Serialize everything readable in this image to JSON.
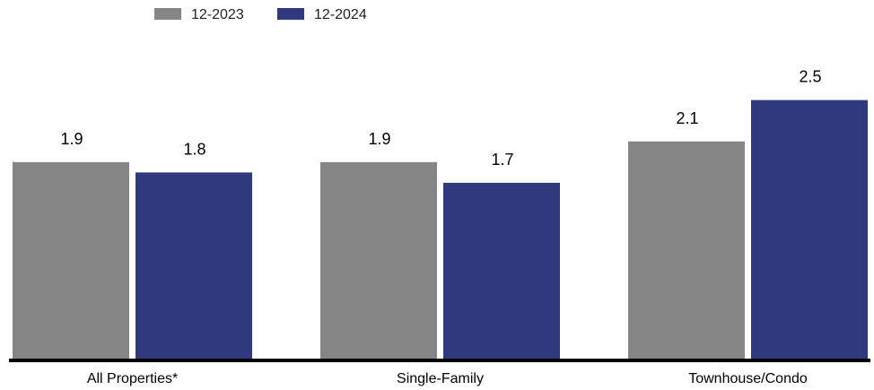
{
  "chart_data": {
    "type": "bar",
    "categories": [
      "All Properties*",
      "Single-Family",
      "Townhouse/Condo"
    ],
    "series": [
      {
        "name": "12-2023",
        "values": [
          1.9,
          1.9,
          2.1
        ],
        "color": "#858585"
      },
      {
        "name": "12-2024",
        "values": [
          1.8,
          1.7,
          2.5
        ],
        "color": "#2e3a7d"
      }
    ],
    "value_labels": [
      [
        "1.9",
        "1.9",
        "2.1"
      ],
      [
        "1.8",
        "1.7",
        "2.5"
      ]
    ],
    "ylim": [
      0,
      2.8
    ],
    "grid": false,
    "legend_position": "top-left",
    "axis_color": "#000000"
  }
}
